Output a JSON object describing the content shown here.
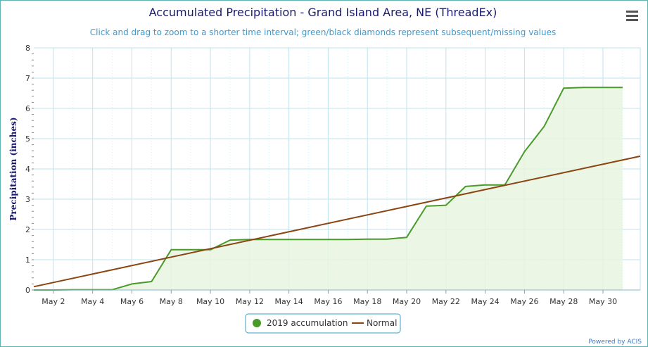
{
  "chart_data": {
    "type": "area",
    "title": "Accumulated Precipitation - Grand Island Area, NE (ThreadEx)",
    "subtitle": "Click and drag to zoom to a shorter time interval; green/black diamonds represent subsequent/missing values",
    "ylabel": "Precipitation (inches)",
    "xlabel": "",
    "ylim": [
      0,
      8
    ],
    "yticks": [
      "0",
      "1",
      "2",
      "3",
      "4",
      "5",
      "6",
      "7",
      "8"
    ],
    "xlim": [
      1,
      31.9
    ],
    "xticks": [
      {
        "day": 2,
        "label": "May 2"
      },
      {
        "day": 4,
        "label": "May 4"
      },
      {
        "day": 6,
        "label": "May 6"
      },
      {
        "day": 8,
        "label": "May 8"
      },
      {
        "day": 10,
        "label": "May 10"
      },
      {
        "day": 12,
        "label": "May 12"
      },
      {
        "day": 14,
        "label": "May 14"
      },
      {
        "day": 16,
        "label": "May 16"
      },
      {
        "day": 18,
        "label": "May 18"
      },
      {
        "day": 20,
        "label": "May 20"
      },
      {
        "day": 22,
        "label": "May 22"
      },
      {
        "day": 24,
        "label": "May 24"
      },
      {
        "day": 26,
        "label": "May 26"
      },
      {
        "day": 28,
        "label": "May 28"
      },
      {
        "day": 30,
        "label": "May 30"
      }
    ],
    "grid": true,
    "legend_position": "bottom-center",
    "series": [
      {
        "name": "2019 accumulation",
        "color": "#4a9a2a",
        "fill": "#e8f4e0",
        "x": [
          1,
          2,
          3,
          4,
          5,
          6,
          7,
          8,
          9,
          10,
          11,
          12,
          13,
          14,
          15,
          16,
          17,
          18,
          19,
          20,
          21,
          22,
          23,
          24,
          25,
          26,
          27,
          28,
          29,
          30,
          31
        ],
        "values": [
          0.0,
          0.0,
          0.01,
          0.01,
          0.01,
          0.2,
          0.28,
          1.33,
          1.33,
          1.33,
          1.65,
          1.67,
          1.67,
          1.67,
          1.67,
          1.67,
          1.67,
          1.68,
          1.68,
          1.74,
          2.77,
          2.8,
          3.42,
          3.47,
          3.47,
          4.57,
          5.4,
          6.67,
          6.69,
          6.69,
          6.69
        ]
      },
      {
        "name": "Normal",
        "color": "#8b4513",
        "x": [
          1,
          31.9
        ],
        "values": [
          0.11,
          4.42
        ]
      }
    ]
  },
  "menu": {
    "icon": "hamburger-menu-icon"
  },
  "credits": {
    "text": "Powered by ACIS"
  }
}
